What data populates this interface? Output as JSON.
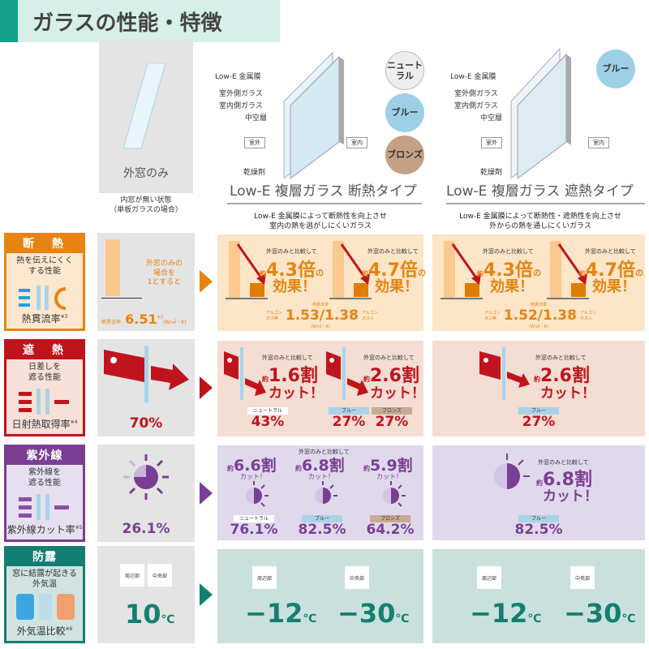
{
  "title": "ガラスの性能・特徴",
  "colors": {
    "accent": "#12a08b",
    "heat": "#e8830f",
    "solar": "#c0141c",
    "uv": "#7a3e94",
    "dew": "#137f72"
  },
  "outer_window": {
    "label": "外窓のみ",
    "caption": "内窓が無い状態\n（単板ガラスの場合）"
  },
  "diagram": {
    "low_e": "Low-E 金属膜",
    "outer_glass": "室外側ガラス",
    "inner_glass": "室内側ガラス",
    "hollow": "中空層",
    "outside": "室外",
    "inside": "室内",
    "desiccant": "乾燥剤"
  },
  "types": [
    {
      "title": "Low-E 複層ガラス 断熱タイプ",
      "desc": "Low-E 金属膜によって断熱性を向上させ\n室内の熱を逃がしにくいガラス",
      "colors": [
        "ニュートラル",
        "ブルー",
        "ブロンズ"
      ]
    },
    {
      "title": "Low-E 複層ガラス 遮熱タイプ",
      "desc": "Low-E 金属膜によって断熱性・遮熱性を向上させ\n外からの熱を通しにくいガラス",
      "colors": [
        "ブルー"
      ]
    }
  ],
  "rows": {
    "heat": {
      "head": "断　熱",
      "sub": "熱を伝えにくく\nする性能",
      "foot": "熱貫流率",
      "note": "※3",
      "base": {
        "text": "外窓のみの\n場合を\n1とすると",
        "label": "熱貫流率",
        "value": "6.51",
        "note": "※3",
        "unit": "(W/㎡・K)"
      },
      "compare": "外窓のみと比較して",
      "approx": "約",
      "suffix": "の",
      "effect": "効果！",
      "c2": {
        "a": "4.3倍",
        "b": "4.7倍",
        "label": "熱貫流率",
        "argon_no": "アルゴン\nガス無",
        "value": "1.53/1.38",
        "argon_yes": "アルゴン\nガス入",
        "unit": "(W/㎡・K)"
      },
      "c3": {
        "a": "4.3倍",
        "b": "4.7倍",
        "label": "熱貫流率",
        "argon_no": "アルゴン\nガス無",
        "value": "1.52/1.38",
        "argon_yes": "アルゴン\nガス入",
        "unit": "(W/㎡・K)"
      }
    },
    "solar": {
      "head": "遮　熱",
      "sub": "日差しを\n遮る性能",
      "foot": "日射熱取得率",
      "note": "※4",
      "base": "70%",
      "compare": "外窓のみと比較して",
      "approx": "約",
      "cut": "カット！",
      "c2": {
        "a": "1.6割",
        "b": "2.6割",
        "items": [
          {
            "chip": "ニュートラル",
            "value": "43%"
          },
          {
            "chip": "ブルー",
            "value": "27%"
          },
          {
            "chip": "ブロンズ",
            "value": "27%"
          }
        ]
      },
      "c3": {
        "a": "2.6割",
        "items": [
          {
            "chip": "ブルー",
            "value": "27%"
          }
        ]
      }
    },
    "uv": {
      "head": "紫外線",
      "sub": "紫外線を\n遮る性能",
      "foot": "紫外線カット率",
      "note": "※5",
      "base": "26.1%",
      "compare": "外窓のみと比較して",
      "approx": "約",
      "cut": "カット！",
      "c2": [
        {
          "amt": "6.6割",
          "chip": "ニュートラル",
          "value": "76.1%"
        },
        {
          "amt": "6.8割",
          "chip": "ブルー",
          "value": "82.5%"
        },
        {
          "amt": "5.9割",
          "chip": "ブロンズ",
          "value": "64.2%"
        }
      ],
      "c3": {
        "amt": "6.8割",
        "chip": "ブルー",
        "value": "82.5%"
      }
    },
    "dew": {
      "head": "防露",
      "sub": "窓に結露が起きる\n外気温",
      "foot": "外気温比較",
      "note": "※6",
      "edge": "周辺部",
      "center": "中央部",
      "unit": "℃",
      "base": "10",
      "c2": {
        "edge": "−12",
        "center": "−30"
      },
      "c3": {
        "edge": "−12",
        "center": "−30"
      }
    }
  }
}
